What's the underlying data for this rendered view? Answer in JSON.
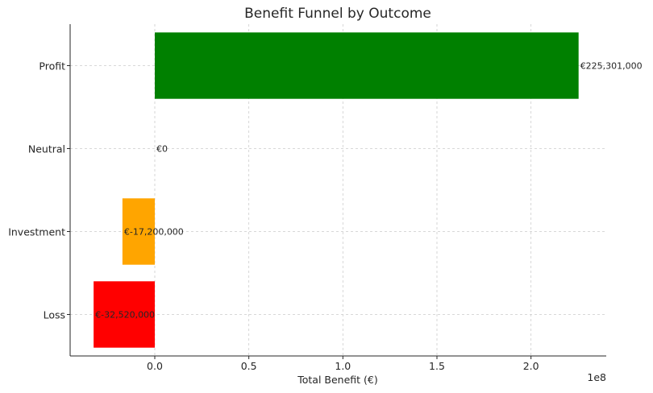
{
  "chart_data": {
    "type": "bar",
    "orientation": "horizontal",
    "title": "Benefit Funnel by Outcome",
    "xlabel": "Total Benefit (€)",
    "ylabel": "",
    "x_offset_text": "1e8",
    "categories": [
      "Profit",
      "Neutral",
      "Investment",
      "Loss"
    ],
    "values": [
      225301000,
      0,
      -17200000,
      -32520000
    ],
    "data_labels": [
      "€225,301,000",
      "€0",
      "€-17,200,000",
      "€-32,520,000"
    ],
    "colors": [
      "#008000",
      "#808080",
      "#ffa500",
      "#ff0000"
    ],
    "xlim": [
      -45000000,
      240000000
    ],
    "xticks": [
      0,
      50000000,
      100000000,
      150000000,
      200000000
    ],
    "xtick_labels": [
      "0.0",
      "0.5",
      "1.0",
      "1.5",
      "2.0"
    ],
    "grid": true
  }
}
